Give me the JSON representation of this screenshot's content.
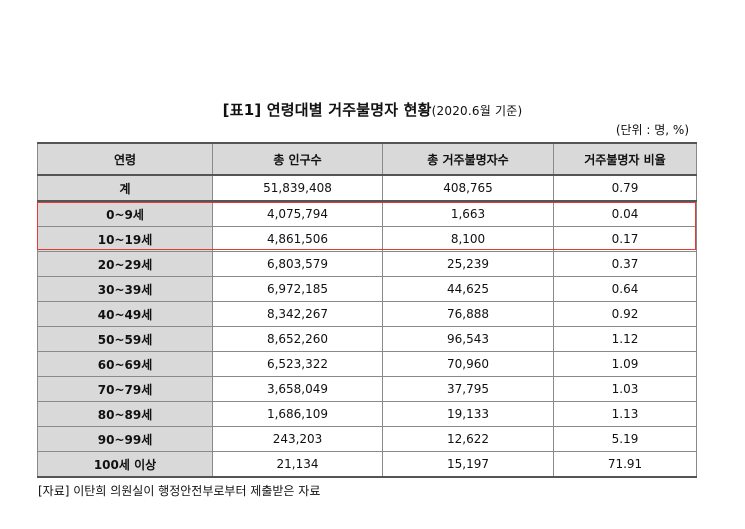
{
  "title": {
    "main": "[표1] 연령대별 거주불명자 현황",
    "sub": "(2020.6월 기준)"
  },
  "unit": "(단위 : 명, %)",
  "table": {
    "headers": [
      "연령",
      "총 인구수",
      "총 거주불명자수",
      "거주불명자 비율"
    ],
    "rows": [
      [
        "계",
        "51,839,408",
        "408,765",
        "0.79"
      ],
      [
        "0~9세",
        "4,075,794",
        "1,663",
        "0.04"
      ],
      [
        "10~19세",
        "4,861,506",
        "8,100",
        "0.17"
      ],
      [
        "20~29세",
        "6,803,579",
        "25,239",
        "0.37"
      ],
      [
        "30~39세",
        "6,972,185",
        "44,625",
        "0.64"
      ],
      [
        "40~49세",
        "8,342,267",
        "76,888",
        "0.92"
      ],
      [
        "50~59세",
        "8,652,260",
        "96,543",
        "1.12"
      ],
      [
        "60~69세",
        "6,523,322",
        "70,960",
        "1.09"
      ],
      [
        "70~79세",
        "3,658,049",
        "37,795",
        "1.03"
      ],
      [
        "80~89세",
        "1,686,109",
        "19,133",
        "1.13"
      ],
      [
        "90~99세",
        "243,203",
        "12,622",
        "5.19"
      ],
      [
        "100세 이상",
        "21,134",
        "15,197",
        "71.91"
      ]
    ]
  },
  "highlight_color": "#e53935",
  "source": "[자료] 이탄희 의원실이 행정안전부로부터 제출받은 자료"
}
